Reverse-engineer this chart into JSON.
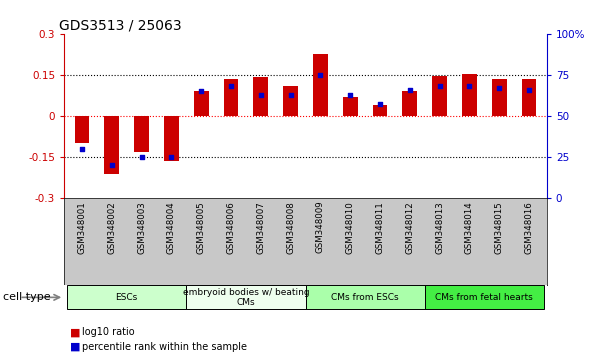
{
  "title": "GDS3513 / 25063",
  "samples": [
    "GSM348001",
    "GSM348002",
    "GSM348003",
    "GSM348004",
    "GSM348005",
    "GSM348006",
    "GSM348007",
    "GSM348008",
    "GSM348009",
    "GSM348010",
    "GSM348011",
    "GSM348012",
    "GSM348013",
    "GSM348014",
    "GSM348015",
    "GSM348016"
  ],
  "log10_ratio": [
    -0.1,
    -0.21,
    -0.13,
    -0.165,
    0.09,
    0.135,
    0.143,
    0.11,
    0.225,
    0.07,
    0.04,
    0.09,
    0.145,
    0.152,
    0.133,
    0.133
  ],
  "percentile_rank": [
    30,
    20,
    25,
    25,
    65,
    68,
    63,
    63,
    75,
    63,
    57,
    66,
    68,
    68,
    67,
    66
  ],
  "red_color": "#cc0000",
  "blue_color": "#0000cc",
  "ylim_left": [
    -0.3,
    0.3
  ],
  "ylim_right": [
    0,
    100
  ],
  "yticks_left": [
    -0.3,
    -0.15,
    0,
    0.15,
    0.3
  ],
  "yticks_right": [
    0,
    25,
    50,
    75,
    100
  ],
  "ytick_labels_right": [
    "0",
    "25",
    "50",
    "75",
    "100%"
  ],
  "hlines": [
    -0.15,
    0,
    0.15
  ],
  "hline_colors": [
    "black",
    "red",
    "black"
  ],
  "hline_styles": [
    "dotted",
    "dotted",
    "dotted"
  ],
  "cell_type_groups": [
    {
      "label": "ESCs",
      "start": 0,
      "end": 3,
      "color": "#ccffcc"
    },
    {
      "label": "embryoid bodies w/ beating\nCMs",
      "start": 4,
      "end": 7,
      "color": "#eeffee"
    },
    {
      "label": "CMs from ESCs",
      "start": 8,
      "end": 11,
      "color": "#aaffaa"
    },
    {
      "label": "CMs from fetal hearts",
      "start": 12,
      "end": 15,
      "color": "#44ee44"
    }
  ],
  "cell_type_label": "cell type",
  "legend_red": "log10 ratio",
  "legend_blue": "percentile rank within the sample",
  "bar_width": 0.5,
  "yticklabel_fontsize": 7.5,
  "title_fontsize": 10,
  "bg_color": "#ffffff",
  "sample_row_color": "#c8c8c8"
}
